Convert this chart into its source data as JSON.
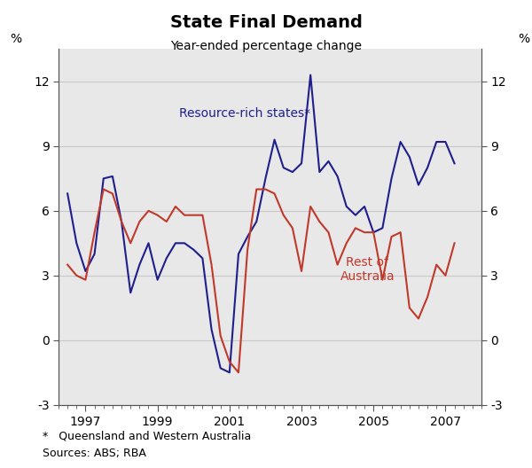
{
  "title": "State Final Demand",
  "subtitle": "Year-ended percentage change",
  "ylabel_left": "%",
  "ylabel_right": "%",
  "footnote1": "*   Queensland and Western Australia",
  "footnote2": "Sources: ABS; RBA",
  "ylim": [
    -3,
    13.5
  ],
  "yticks": [
    -3,
    0,
    3,
    6,
    9,
    12
  ],
  "background_color": "#ffffff",
  "plot_bg_color": "#e8e8e8",
  "label_rich": "Resource-rich states*",
  "label_rest": "Rest of\nAustralia",
  "color_rich": "#1f1f8c",
  "color_rest": "#c0392b",
  "rich_x": [
    1996.5,
    1996.75,
    1997.0,
    1997.25,
    1997.5,
    1997.75,
    1998.0,
    1998.25,
    1998.5,
    1998.75,
    1999.0,
    1999.25,
    1999.5,
    1999.75,
    2000.0,
    2000.25,
    2000.5,
    2000.75,
    2001.0,
    2001.25,
    2001.5,
    2001.75,
    2002.0,
    2002.25,
    2002.5,
    2002.75,
    2003.0,
    2003.25,
    2003.5,
    2003.75,
    2004.0,
    2004.25,
    2004.5,
    2004.75,
    2005.0,
    2005.25,
    2005.5,
    2005.75,
    2006.0,
    2006.25,
    2006.5,
    2006.75,
    2007.0,
    2007.25
  ],
  "rich_y": [
    6.8,
    4.5,
    3.2,
    4.0,
    7.5,
    7.6,
    5.5,
    2.2,
    3.5,
    4.5,
    2.8,
    3.8,
    4.5,
    4.5,
    4.2,
    3.8,
    0.5,
    -1.3,
    -1.5,
    4.0,
    4.8,
    5.5,
    7.5,
    9.3,
    8.0,
    7.8,
    8.2,
    12.3,
    7.8,
    8.3,
    7.6,
    6.2,
    5.8,
    6.2,
    5.0,
    5.2,
    7.5,
    9.2,
    8.5,
    7.2,
    8.0,
    9.2,
    9.2,
    8.2
  ],
  "rest_x": [
    1996.5,
    1996.75,
    1997.0,
    1997.25,
    1997.5,
    1997.75,
    1998.0,
    1998.25,
    1998.5,
    1998.75,
    1999.0,
    1999.25,
    1999.5,
    1999.75,
    2000.0,
    2000.25,
    2000.5,
    2000.75,
    2001.0,
    2001.25,
    2001.5,
    2001.75,
    2002.0,
    2002.25,
    2002.5,
    2002.75,
    2003.0,
    2003.25,
    2003.5,
    2003.75,
    2004.0,
    2004.25,
    2004.5,
    2004.75,
    2005.0,
    2005.25,
    2005.5,
    2005.75,
    2006.0,
    2006.25,
    2006.5,
    2006.75,
    2007.0,
    2007.25
  ],
  "rest_y": [
    3.5,
    3.0,
    2.8,
    5.0,
    7.0,
    6.8,
    5.5,
    4.5,
    5.5,
    6.0,
    5.8,
    5.5,
    6.2,
    5.8,
    5.8,
    5.8,
    3.5,
    0.2,
    -1.0,
    -1.5,
    4.2,
    7.0,
    7.0,
    6.8,
    5.8,
    5.2,
    3.2,
    6.2,
    5.5,
    5.0,
    3.5,
    4.5,
    5.2,
    5.0,
    5.0,
    2.8,
    4.8,
    5.0,
    1.5,
    1.0,
    2.0,
    3.5,
    3.0,
    4.5
  ]
}
